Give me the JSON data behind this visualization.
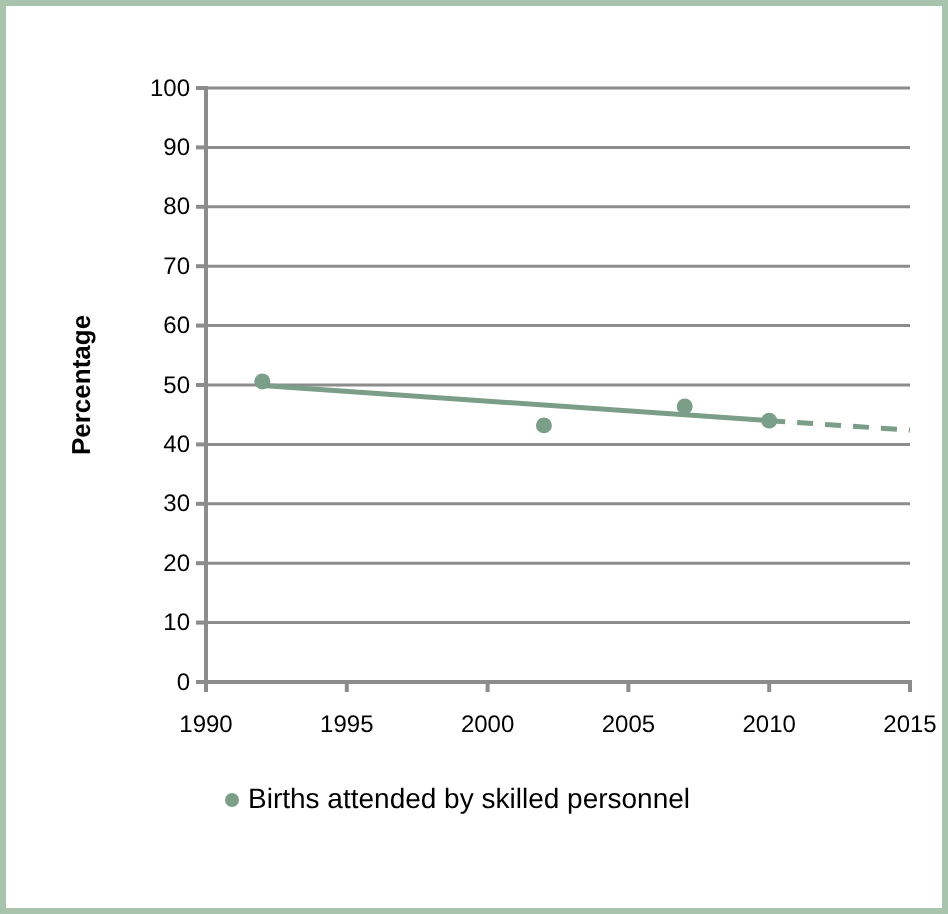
{
  "chart_data": {
    "type": "scatter",
    "ylabel": "Percentage",
    "xlim": [
      1990,
      2015
    ],
    "xticks": [
      1990,
      1995,
      2000,
      2005,
      2010,
      2015
    ],
    "ylim": [
      0,
      100
    ],
    "yticks": [
      0,
      10,
      20,
      30,
      40,
      50,
      60,
      70,
      80,
      90,
      100
    ],
    "grid": "y",
    "legend": "bottom",
    "marker": "circle",
    "series": [
      {
        "name": "Births attended by skilled personnel",
        "color": "#7a9e87",
        "x": [
          1992,
          2002,
          2007,
          2010
        ],
        "values": [
          50.6,
          43.2,
          46.4,
          44.0
        ]
      },
      {
        "type": "line",
        "color": "#7a9e87",
        "x": [
          1992,
          2010
        ],
        "values": [
          49.9,
          44.0
        ],
        "line_style": "solid",
        "marker": "none"
      },
      {
        "type": "line",
        "color": "#7a9e87",
        "x": [
          2010,
          2015
        ],
        "values": [
          44.0,
          42.4
        ],
        "line_style": "dashed",
        "marker": "none"
      }
    ]
  }
}
